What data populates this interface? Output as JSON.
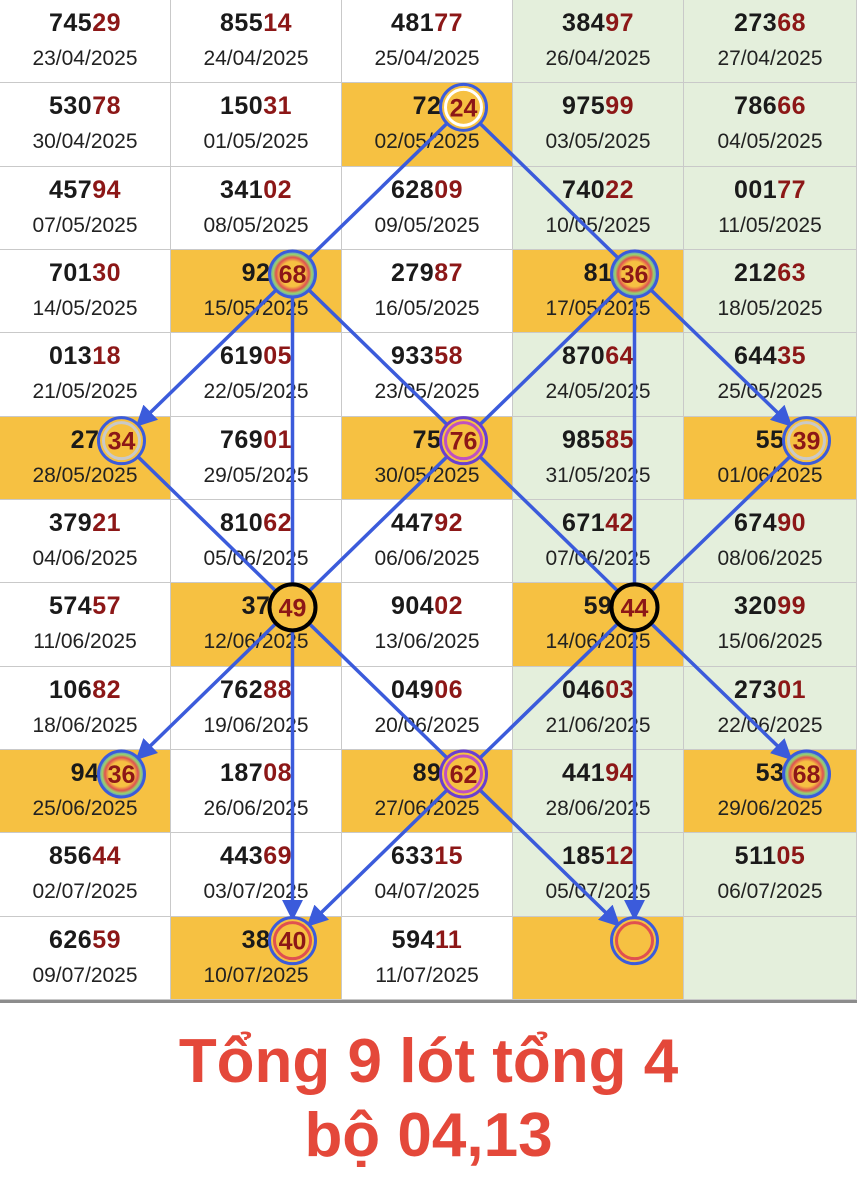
{
  "colors": {
    "arrow": "#3b5bdb",
    "highlight": "#f6c142",
    "green": "#e4efdc",
    "caption": "#e4483a",
    "number_accent": "#8c1717"
  },
  "rows": [
    [
      {
        "prefix": "745",
        "suffix": "29",
        "date": "23/04/2025"
      },
      {
        "prefix": "855",
        "suffix": "14",
        "date": "24/04/2025"
      },
      {
        "prefix": "481",
        "suffix": "77",
        "date": "25/04/2025"
      },
      {
        "prefix": "384",
        "suffix": "97",
        "date": "26/04/2025"
      },
      {
        "prefix": "273",
        "suffix": "68",
        "date": "27/04/2025"
      }
    ],
    [
      {
        "prefix": "530",
        "suffix": "78",
        "date": "30/04/2025"
      },
      {
        "prefix": "150",
        "suffix": "31",
        "date": "01/05/2025"
      },
      {
        "prefix": "72",
        "suffix": "",
        "date": "02/05/2025"
      },
      {
        "prefix": "975",
        "suffix": "99",
        "date": "03/05/2025"
      },
      {
        "prefix": "786",
        "suffix": "66",
        "date": "04/05/2025"
      }
    ],
    [
      {
        "prefix": "457",
        "suffix": "94",
        "date": "07/05/2025"
      },
      {
        "prefix": "341",
        "suffix": "02",
        "date": "08/05/2025"
      },
      {
        "prefix": "628",
        "suffix": "09",
        "date": "09/05/2025"
      },
      {
        "prefix": "740",
        "suffix": "22",
        "date": "10/05/2025"
      },
      {
        "prefix": "001",
        "suffix": "77",
        "date": "11/05/2025"
      }
    ],
    [
      {
        "prefix": "701",
        "suffix": "30",
        "date": "14/05/2025"
      },
      {
        "prefix": "92",
        "suffix": "",
        "date": "15/05/2025"
      },
      {
        "prefix": "279",
        "suffix": "87",
        "date": "16/05/2025"
      },
      {
        "prefix": "81",
        "suffix": "",
        "date": "17/05/2025"
      },
      {
        "prefix": "212",
        "suffix": "63",
        "date": "18/05/2025"
      }
    ],
    [
      {
        "prefix": "013",
        "suffix": "18",
        "date": "21/05/2025"
      },
      {
        "prefix": "619",
        "suffix": "05",
        "date": "22/05/2025"
      },
      {
        "prefix": "933",
        "suffix": "58",
        "date": "23/05/2025"
      },
      {
        "prefix": "870",
        "suffix": "64",
        "date": "24/05/2025"
      },
      {
        "prefix": "644",
        "suffix": "35",
        "date": "25/05/2025"
      }
    ],
    [
      {
        "prefix": "27",
        "suffix": "",
        "date": "28/05/2025"
      },
      {
        "prefix": "769",
        "suffix": "01",
        "date": "29/05/2025"
      },
      {
        "prefix": "75",
        "suffix": "",
        "date": "30/05/2025"
      },
      {
        "prefix": "985",
        "suffix": "85",
        "date": "31/05/2025"
      },
      {
        "prefix": "55",
        "suffix": "",
        "date": "01/06/2025"
      }
    ],
    [
      {
        "prefix": "379",
        "suffix": "21",
        "date": "04/06/2025"
      },
      {
        "prefix": "810",
        "suffix": "62",
        "date": "05/06/2025"
      },
      {
        "prefix": "447",
        "suffix": "92",
        "date": "06/06/2025"
      },
      {
        "prefix": "671",
        "suffix": "42",
        "date": "07/06/2025"
      },
      {
        "prefix": "674",
        "suffix": "90",
        "date": "08/06/2025"
      }
    ],
    [
      {
        "prefix": "574",
        "suffix": "57",
        "date": "11/06/2025"
      },
      {
        "prefix": "37",
        "suffix": "",
        "date": "12/06/2025"
      },
      {
        "prefix": "904",
        "suffix": "02",
        "date": "13/06/2025"
      },
      {
        "prefix": "59",
        "suffix": "",
        "date": "14/06/2025"
      },
      {
        "prefix": "320",
        "suffix": "99",
        "date": "15/06/2025"
      }
    ],
    [
      {
        "prefix": "106",
        "suffix": "82",
        "date": "18/06/2025"
      },
      {
        "prefix": "762",
        "suffix": "88",
        "date": "19/06/2025"
      },
      {
        "prefix": "049",
        "suffix": "06",
        "date": "20/06/2025"
      },
      {
        "prefix": "046",
        "suffix": "03",
        "date": "21/06/2025"
      },
      {
        "prefix": "273",
        "suffix": "01",
        "date": "22/06/2025"
      }
    ],
    [
      {
        "prefix": "94",
        "suffix": "",
        "date": "25/06/2025"
      },
      {
        "prefix": "187",
        "suffix": "08",
        "date": "26/06/2025"
      },
      {
        "prefix": "89",
        "suffix": "",
        "date": "27/06/2025"
      },
      {
        "prefix": "441",
        "suffix": "94",
        "date": "28/06/2025"
      },
      {
        "prefix": "53",
        "suffix": "",
        "date": "29/06/2025"
      }
    ],
    [
      {
        "prefix": "856",
        "suffix": "44",
        "date": "02/07/2025"
      },
      {
        "prefix": "443",
        "suffix": "69",
        "date": "03/07/2025"
      },
      {
        "prefix": "633",
        "suffix": "15",
        "date": "04/07/2025"
      },
      {
        "prefix": "185",
        "suffix": "12",
        "date": "05/07/2025"
      },
      {
        "prefix": "511",
        "suffix": "05",
        "date": "06/07/2025"
      }
    ],
    [
      {
        "prefix": "626",
        "suffix": "59",
        "date": "09/07/2025"
      },
      {
        "prefix": "38",
        "suffix": "",
        "date": "10/07/2025"
      },
      {
        "prefix": "594",
        "suffix": "11",
        "date": "11/07/2025"
      },
      {
        "prefix": "",
        "suffix": "",
        "date": ""
      },
      {
        "prefix": "",
        "suffix": "",
        "date": ""
      }
    ]
  ],
  "markers": [
    {
      "row": 1,
      "col": 2,
      "label": "24",
      "style": "white"
    },
    {
      "row": 3,
      "col": 1,
      "label": "68",
      "style": "rainbow"
    },
    {
      "row": 3,
      "col": 3,
      "label": "36",
      "style": "rainbow"
    },
    {
      "row": 5,
      "col": 0,
      "label": "34",
      "style": "gray"
    },
    {
      "row": 5,
      "col": 2,
      "label": "76",
      "style": "purple"
    },
    {
      "row": 5,
      "col": 4,
      "label": "39",
      "style": "gray"
    },
    {
      "row": 7,
      "col": 1,
      "label": "49",
      "style": "black"
    },
    {
      "row": 7,
      "col": 3,
      "label": "44",
      "style": "black"
    },
    {
      "row": 9,
      "col": 0,
      "label": "36",
      "style": "rainbow"
    },
    {
      "row": 9,
      "col": 2,
      "label": "62",
      "style": "purple"
    },
    {
      "row": 9,
      "col": 4,
      "label": "68",
      "style": "rainbow"
    },
    {
      "row": 11,
      "col": 1,
      "label": "40",
      "style": "red"
    },
    {
      "row": 11,
      "col": 3,
      "label": "",
      "style": "red"
    }
  ],
  "caption": {
    "line1": "Tổng 9 lót tổng 4",
    "line2": "bộ 04,13"
  }
}
